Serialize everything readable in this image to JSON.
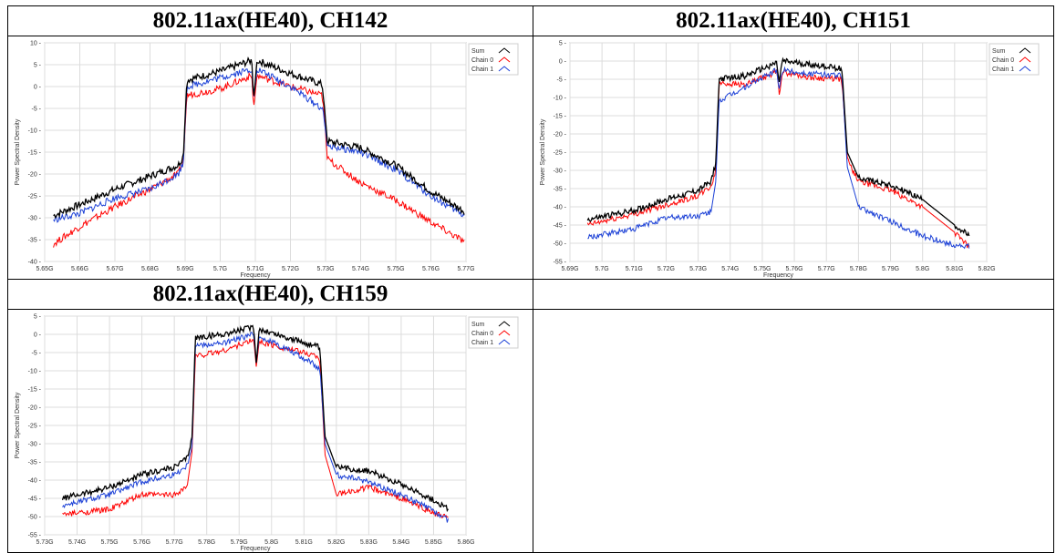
{
  "page": {
    "cell_titles": [
      "802.11ax(HE40), CH142",
      "802.11ax(HE40), CH151",
      "802.11ax(HE40), CH159"
    ]
  },
  "chart_data": [
    {
      "type": "line",
      "title": "802.11ax(HE40), CH142",
      "xlabel": "Frequency",
      "ylabel": "Power Spectral Density",
      "xlim": [
        5.65,
        5.77
      ],
      "ylim": [
        -40,
        10
      ],
      "x_ticks": [
        5.65,
        5.66,
        5.67,
        5.68,
        5.69,
        5.7,
        5.71,
        5.72,
        5.73,
        5.74,
        5.75,
        5.76,
        5.77
      ],
      "x_tick_labels": [
        "5.65G",
        "5.66G",
        "5.67G",
        "5.68G",
        "5.69G",
        "5.7G",
        "5.71G",
        "5.72G",
        "5.73G",
        "5.74G",
        "5.75G",
        "5.76G",
        "5.77G"
      ],
      "y_ticks": [
        10,
        5,
        0,
        -5,
        -10,
        -15,
        -20,
        -25,
        -30,
        -35,
        -40
      ],
      "y_tick_labels": [
        "10",
        "5",
        "0",
        "-5",
        "-10",
        "-15",
        "-20",
        "-25",
        "-30",
        "-35",
        "-40"
      ],
      "grid": true,
      "legend": "top-right",
      "colors": {
        "Sum": "#000000",
        "Chain 0": "#ff0000",
        "Chain 1": "#1a3fd6"
      },
      "series": [
        {
          "name": "Sum",
          "x": [
            5.6525,
            5.66,
            5.67,
            5.68,
            5.688,
            5.6895,
            5.6905,
            5.7,
            5.709,
            5.7095,
            5.7105,
            5.72,
            5.729,
            5.7295,
            5.7305,
            5.74,
            5.75,
            5.76,
            5.7695
          ],
          "y": [
            -29.5,
            -27,
            -23.5,
            -20.5,
            -18,
            -16,
            1.5,
            3.5,
            6,
            -3,
            6,
            3,
            0.5,
            -3,
            -12.5,
            -14,
            -18,
            -24,
            -28.5
          ]
        },
        {
          "name": "Chain 0",
          "x": [
            5.6525,
            5.66,
            5.67,
            5.68,
            5.688,
            5.6895,
            5.6905,
            5.7,
            5.709,
            5.7095,
            5.7105,
            5.72,
            5.729,
            5.7295,
            5.7305,
            5.74,
            5.75,
            5.76,
            5.7695
          ],
          "y": [
            -36,
            -32,
            -27.5,
            -23.5,
            -20,
            -17,
            -2,
            -0.5,
            2.5,
            -5,
            2.5,
            0,
            -2,
            -5,
            -16.5,
            -22,
            -26,
            -31,
            -35.5
          ]
        },
        {
          "name": "Chain 1",
          "x": [
            5.6525,
            5.66,
            5.67,
            5.68,
            5.688,
            5.6895,
            5.6905,
            5.7,
            5.709,
            5.7095,
            5.7105,
            5.72,
            5.729,
            5.7295,
            5.7305,
            5.74,
            5.75,
            5.76,
            5.7695
          ],
          "y": [
            -30.5,
            -29,
            -25.5,
            -23.5,
            -20,
            -17.5,
            0,
            2,
            4,
            -3,
            4,
            0,
            -5,
            -7,
            -13.5,
            -15,
            -19,
            -25,
            -29.5
          ]
        }
      ]
    },
    {
      "type": "line",
      "title": "802.11ax(HE40), CH151",
      "xlabel": "Frequency",
      "ylabel": "Power Spectral Density",
      "xlim": [
        5.69,
        5.82
      ],
      "ylim": [
        -55,
        5
      ],
      "x_ticks": [
        5.69,
        5.7,
        5.71,
        5.72,
        5.73,
        5.74,
        5.75,
        5.76,
        5.77,
        5.78,
        5.79,
        5.8,
        5.81,
        5.82
      ],
      "x_tick_labels": [
        "5.69G",
        "5.7G",
        "5.71G",
        "5.72G",
        "5.73G",
        "5.74G",
        "5.75G",
        "5.76G",
        "5.77G",
        "5.78G",
        "5.79G",
        "5.8G",
        "5.81G",
        "5.82G"
      ],
      "y_ticks": [
        5,
        0,
        -5,
        -10,
        -15,
        -20,
        -25,
        -30,
        -35,
        -40,
        -45,
        -50,
        -55
      ],
      "y_tick_labels": [
        "5",
        "0",
        "-5",
        "-10",
        "-15",
        "-20",
        "-25",
        "-30",
        "-35",
        "-40",
        "-45",
        "-50",
        "-55"
      ],
      "grid": true,
      "legend": "top-right",
      "colors": {
        "Sum": "#000000",
        "Chain 0": "#ff0000",
        "Chain 1": "#1a3fd6"
      },
      "series": [
        {
          "name": "Sum",
          "x": [
            5.6955,
            5.71,
            5.72,
            5.73,
            5.734,
            5.7355,
            5.7365,
            5.745,
            5.7545,
            5.7553,
            5.7562,
            5.765,
            5.7745,
            5.775,
            5.7765,
            5.78,
            5.79,
            5.8,
            5.81,
            5.8145
          ],
          "y": [
            -43.5,
            -41,
            -38,
            -35.5,
            -33,
            -28,
            -5,
            -4,
            -0.5,
            -6,
            0,
            -1,
            -2,
            -4,
            -25,
            -32,
            -34,
            -38,
            -45,
            -48
          ]
        },
        {
          "name": "Chain 0",
          "x": [
            5.6955,
            5.71,
            5.72,
            5.73,
            5.734,
            5.7355,
            5.7365,
            5.745,
            5.7545,
            5.7553,
            5.7562,
            5.765,
            5.7745,
            5.775,
            5.7765,
            5.78,
            5.79,
            5.8,
            5.81,
            5.8145
          ],
          "y": [
            -45,
            -42,
            -39.5,
            -37,
            -34.5,
            -30,
            -6,
            -6.5,
            -3,
            -9,
            -3,
            -4.5,
            -5,
            -7,
            -27,
            -33,
            -35.5,
            -40,
            -47,
            -51
          ]
        },
        {
          "name": "Chain 1",
          "x": [
            5.6955,
            5.71,
            5.72,
            5.73,
            5.734,
            5.7355,
            5.7365,
            5.745,
            5.7545,
            5.7553,
            5.7562,
            5.765,
            5.7745,
            5.775,
            5.7765,
            5.78,
            5.79,
            5.8,
            5.81,
            5.8145
          ],
          "y": [
            -48.5,
            -46,
            -43,
            -42.5,
            -41.5,
            -33,
            -11,
            -7,
            -2.5,
            -8,
            -2.5,
            -3.5,
            -4,
            -6,
            -29,
            -40,
            -44,
            -48,
            -50.5,
            -51
          ]
        }
      ]
    },
    {
      "type": "line",
      "title": "802.11ax(HE40), CH159",
      "xlabel": "Frequency",
      "ylabel": "Power Spectral Density",
      "xlim": [
        5.73,
        5.86
      ],
      "ylim": [
        -55,
        5
      ],
      "x_ticks": [
        5.73,
        5.74,
        5.75,
        5.76,
        5.77,
        5.78,
        5.79,
        5.8,
        5.81,
        5.82,
        5.83,
        5.84,
        5.85,
        5.86
      ],
      "x_tick_labels": [
        "5.73G",
        "5.74G",
        "5.75G",
        "5.76G",
        "5.77G",
        "5.78G",
        "5.79G",
        "5.8G",
        "5.81G",
        "5.82G",
        "5.83G",
        "5.84G",
        "5.85G",
        "5.86G"
      ],
      "y_ticks": [
        5,
        0,
        -5,
        -10,
        -15,
        -20,
        -25,
        -30,
        -35,
        -40,
        -45,
        -50,
        -55
      ],
      "y_tick_labels": [
        "5",
        "0",
        "-5",
        "-10",
        "-15",
        "-20",
        "-25",
        "-30",
        "-35",
        "-40",
        "-45",
        "-50",
        "-55"
      ],
      "grid": true,
      "legend": "top-right",
      "colors": {
        "Sum": "#000000",
        "Chain 0": "#ff0000",
        "Chain 1": "#1a3fd6"
      },
      "series": [
        {
          "name": "Sum",
          "x": [
            5.7355,
            5.75,
            5.76,
            5.77,
            5.774,
            5.7755,
            5.7765,
            5.785,
            5.7945,
            5.7953,
            5.7962,
            5.805,
            5.8145,
            5.815,
            5.8165,
            5.82,
            5.83,
            5.84,
            5.85,
            5.8545
          ],
          "y": [
            -45,
            -42,
            -38.5,
            -36.5,
            -34,
            -28,
            -1,
            0,
            2,
            -8,
            1.5,
            -1,
            -3.5,
            -5,
            -28,
            -36.5,
            -37.5,
            -41,
            -45.5,
            -48
          ]
        },
        {
          "name": "Chain 0",
          "x": [
            5.7355,
            5.75,
            5.76,
            5.77,
            5.774,
            5.7755,
            5.7765,
            5.785,
            5.7945,
            5.7953,
            5.7962,
            5.805,
            5.8145,
            5.815,
            5.8165,
            5.82,
            5.83,
            5.84,
            5.85,
            5.8545
          ],
          "y": [
            -49.5,
            -48,
            -44,
            -44,
            -41.5,
            -32,
            -6,
            -4.5,
            -1.5,
            -9,
            -2,
            -4,
            -6,
            -8,
            -33,
            -44,
            -42,
            -45,
            -49,
            -50.5
          ]
        },
        {
          "name": "Chain 1",
          "x": [
            5.7355,
            5.75,
            5.76,
            5.77,
            5.774,
            5.7755,
            5.7765,
            5.785,
            5.7945,
            5.7953,
            5.7962,
            5.805,
            5.8145,
            5.815,
            5.8165,
            5.82,
            5.83,
            5.84,
            5.85,
            5.8545
          ],
          "y": [
            -47,
            -44,
            -40.5,
            -38.5,
            -36,
            -30,
            -3,
            -2.5,
            0,
            -8,
            -0.5,
            -4,
            -9,
            -10,
            -30,
            -38.5,
            -40.5,
            -44,
            -48.5,
            -51
          ]
        }
      ]
    }
  ]
}
